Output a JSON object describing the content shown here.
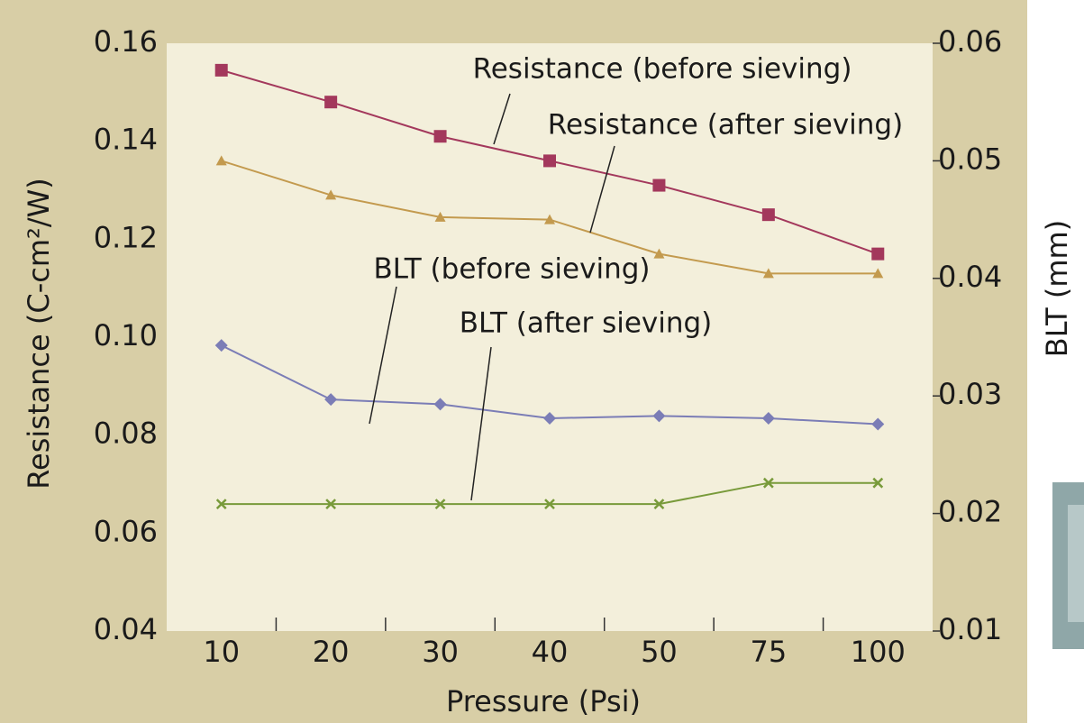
{
  "chart_data": {
    "type": "line",
    "categories": [
      "10",
      "20",
      "30",
      "40",
      "50",
      "75",
      "100"
    ],
    "xlabel": "Pressure (Psi)",
    "ylabel": "Resistance (C-cm²/W)",
    "y2label": "BLT (mm)",
    "ylim": [
      0.04,
      0.16
    ],
    "yticks": [
      0.04,
      0.06,
      0.08,
      {
        "value": 0.1,
        "label": "0.10"
      },
      0.12,
      0.14,
      0.16
    ],
    "y2lim": [
      0.01,
      0.06
    ],
    "y2ticks": [
      0.01,
      0.02,
      0.03,
      0.04,
      0.05,
      0.06
    ],
    "series": [
      {
        "name": "Resistance (before sieving)",
        "color": "#a3385c",
        "marker": "square",
        "values": [
          0.1545,
          0.148,
          0.141,
          0.136,
          0.131,
          0.125,
          0.117
        ]
      },
      {
        "name": "Resistance (after sieving)",
        "color": "#c39a4e",
        "marker": "triangle",
        "values": [
          0.136,
          0.129,
          0.1245,
          0.124,
          0.117,
          0.113,
          0.113
        ]
      },
      {
        "name": "BLT (before sieving)",
        "color": "#7b7db6",
        "marker": "diamond",
        "axis": "y2",
        "values": [
          0.0343,
          0.0297,
          0.0293,
          0.0281,
          0.0283,
          0.0281,
          0.0276
        ]
      },
      {
        "name": "BLT (after sieving)",
        "color": "#789a3a",
        "marker": "x",
        "axis": "y2",
        "values": [
          0.0208,
          0.0208,
          0.0208,
          0.0208,
          0.0208,
          0.0226,
          0.0226
        ]
      }
    ]
  }
}
